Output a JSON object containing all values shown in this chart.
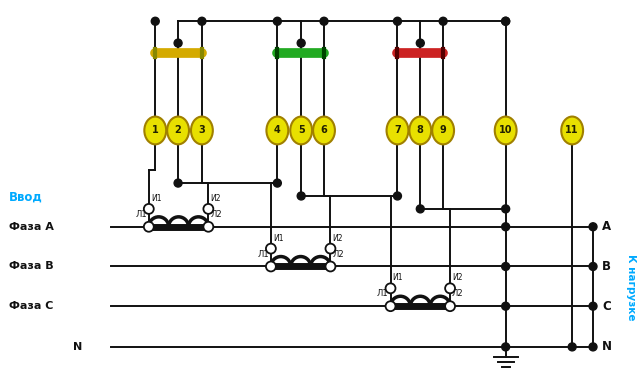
{
  "bg_color": "#ffffff",
  "phase_labels_left": [
    "Ввод",
    "Фаза А",
    "Фаза В",
    "Фаза С",
    "N"
  ],
  "phase_labels_right": [
    "А",
    "В",
    "С",
    "N"
  ],
  "terminal_numbers": [
    "1",
    "2",
    "3",
    "4",
    "5",
    "6",
    "7",
    "8",
    "9",
    "10",
    "11"
  ],
  "terminal_color": "#e8e000",
  "terminal_border": "#a08000",
  "busbar_A_color": "#d4aa00",
  "busbar_B_color": "#22aa22",
  "busbar_C_color": "#cc2222",
  "dot_color": "#111111",
  "line_color": "#111111",
  "label_color_vvod": "#00aaff",
  "label_color_nag": "#00aaff",
  "label_color_black": "#111111"
}
